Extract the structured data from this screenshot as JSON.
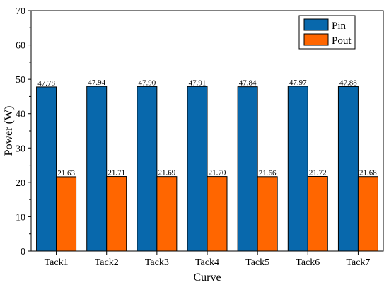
{
  "chart_data": {
    "type": "bar",
    "title": "",
    "xlabel": "Curve",
    "ylabel": "Power (W)",
    "ylim": [
      0,
      70
    ],
    "yticks": [
      0,
      10,
      20,
      30,
      40,
      50,
      60,
      70
    ],
    "grid": false,
    "legend_position": "top-right",
    "categories": [
      "Tack1",
      "Tack2",
      "Tack3",
      "Tack4",
      "Tack5",
      "Tack6",
      "Tack7"
    ],
    "series": [
      {
        "name": "Pin",
        "color": "#0868ac",
        "values": [
          47.78,
          47.94,
          47.9,
          47.91,
          47.84,
          47.97,
          47.88
        ],
        "labels": [
          "47.78",
          "47.94",
          "47.90",
          "47.91",
          "47.84",
          "47.97",
          "47.88"
        ]
      },
      {
        "name": "Pout",
        "color": "#ff6600",
        "values": [
          21.63,
          21.71,
          21.69,
          21.7,
          21.66,
          21.72,
          21.68
        ],
        "labels": [
          "21.63",
          "21.71",
          "21.69",
          "21.70",
          "21.66",
          "21.72",
          "21.68"
        ]
      }
    ]
  }
}
